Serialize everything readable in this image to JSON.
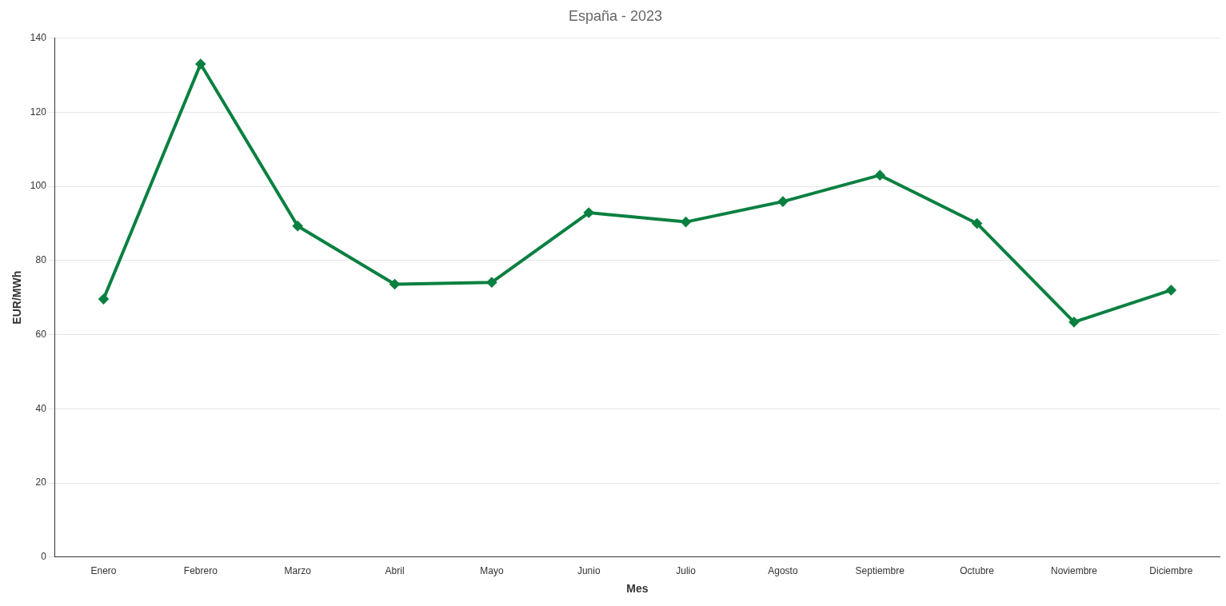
{
  "chart_data": {
    "type": "line",
    "title": "España - 2023",
    "xlabel": "Mes",
    "ylabel": "EUR/MWh",
    "categories": [
      "Enero",
      "Febrero",
      "Marzo",
      "Abril",
      "Mayo",
      "Junio",
      "Julio",
      "Agosto",
      "Septiembre",
      "Octubre",
      "Noviembre",
      "Diciembre"
    ],
    "series": [
      {
        "color": "#0a8040",
        "values": [
          69.6,
          133,
          89.3,
          73.6,
          74.1,
          92.9,
          90.4,
          95.9,
          103,
          90,
          63.4,
          72
        ]
      }
    ],
    "ylim": [
      0,
      140
    ],
    "yticks": [
      0,
      20,
      40,
      60,
      80,
      100,
      120,
      140
    ],
    "grid": "y",
    "legend": false,
    "marker": "diamond",
    "line_style": "solid"
  }
}
